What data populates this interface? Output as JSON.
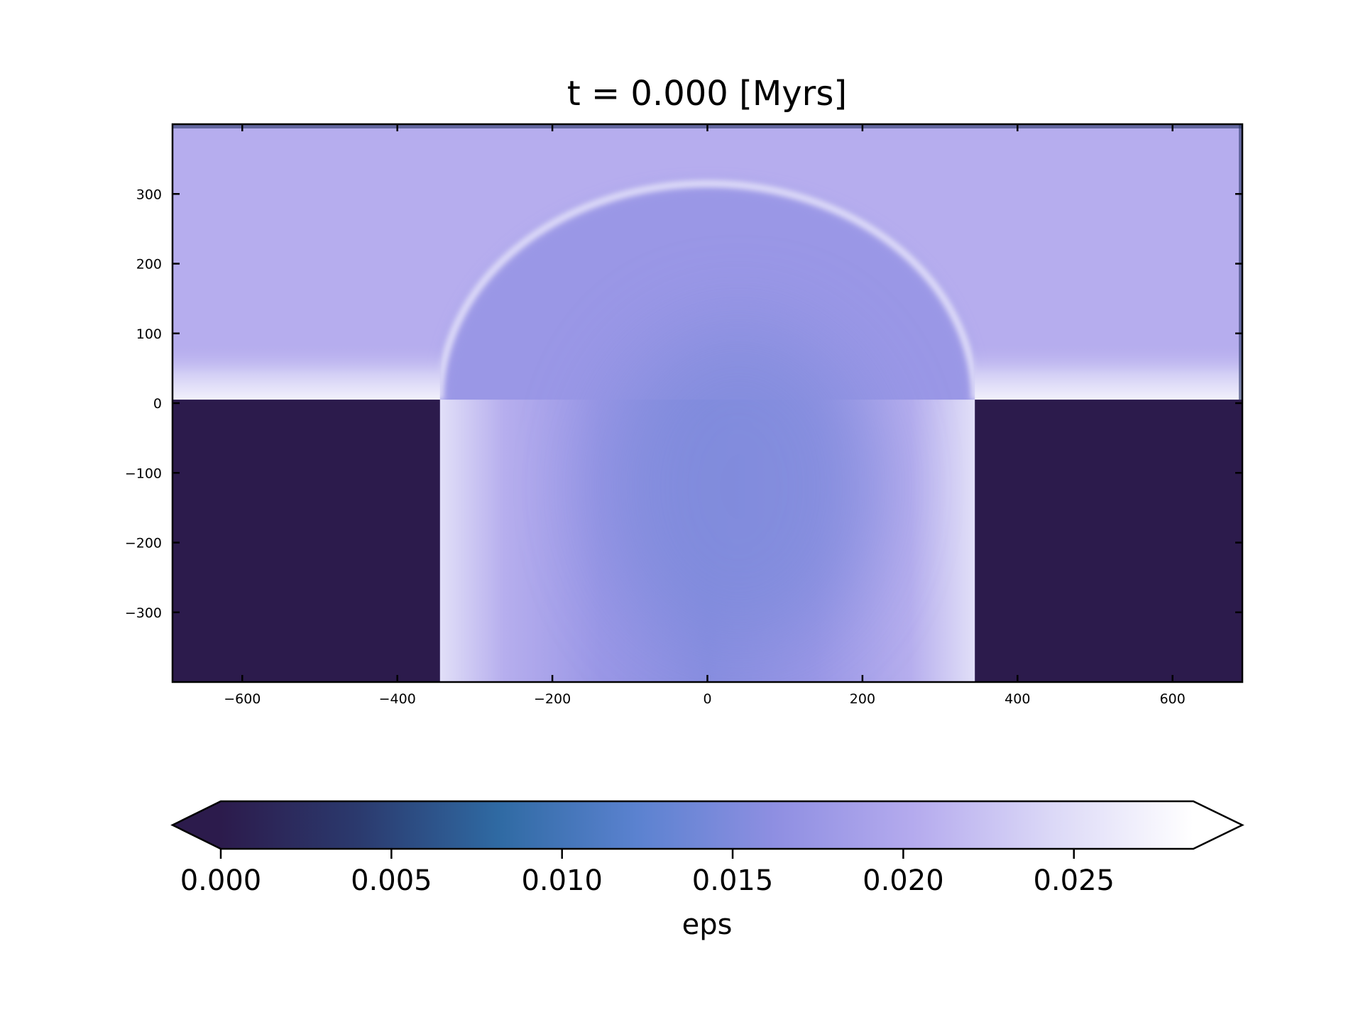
{
  "chart_data": {
    "type": "heatmap",
    "title": "t = 0.000 [Myrs]",
    "xlabel": "",
    "ylabel": "",
    "xlim": [
      -690,
      690
    ],
    "ylim": [
      -400,
      400
    ],
    "x_ticks": [
      -600,
      -400,
      -200,
      0,
      200,
      400,
      600
    ],
    "x_tick_labels": [
      "−600",
      "−400",
      "−200",
      "0",
      "200",
      "400",
      "600"
    ],
    "y_ticks": [
      300,
      200,
      100,
      0,
      -100,
      -200,
      -300
    ],
    "y_tick_labels": [
      "300",
      "200",
      "100",
      "0",
      "−100",
      "−200",
      "−300"
    ],
    "field": {
      "background_value": 0.0205,
      "block_value": 0.0,
      "blocks": [
        {
          "x": [
            -690,
            -345
          ],
          "y": [
            -400,
            5
          ]
        },
        {
          "x": [
            345,
            690
          ],
          "y": [
            -400,
            5
          ]
        }
      ],
      "channel_x": [
        -345,
        345
      ],
      "channel_center_value": 0.0155,
      "channel_wall_value": 0.0265,
      "shock_front": {
        "center": [
          0,
          5
        ],
        "radius_x": 345,
        "radius_y": 310,
        "value": 0.0235
      },
      "surface_value": 0.027
    },
    "colorbar": {
      "label": "eps",
      "min": 0.0,
      "max": 0.0285,
      "extend": "both",
      "ticks": [
        0.0,
        0.005,
        0.01,
        0.015,
        0.02,
        0.025
      ],
      "tick_labels": [
        "0.000",
        "0.005",
        "0.010",
        "0.015",
        "0.020",
        "0.025"
      ],
      "colors": [
        "#2c1b4c",
        "#2b3a6e",
        "#2f6aa3",
        "#5b82d0",
        "#8f8fe2",
        "#b5abee",
        "#dcd9f7",
        "#ffffff"
      ]
    }
  }
}
